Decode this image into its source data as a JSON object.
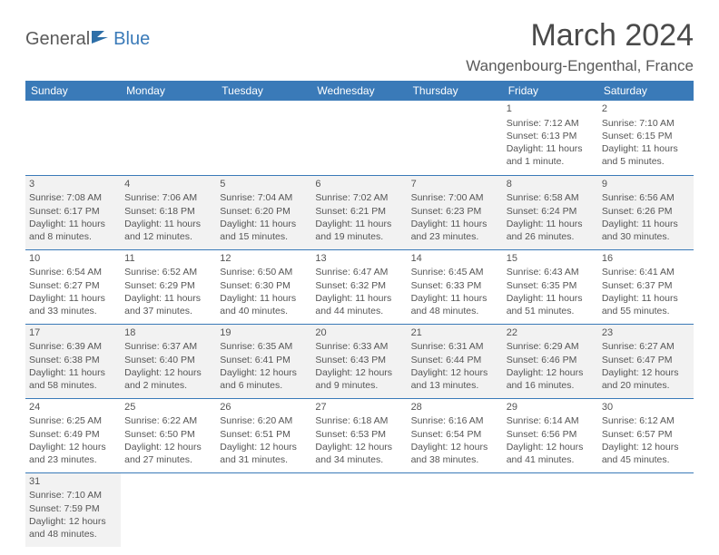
{
  "brand": {
    "part1": "General",
    "part2": "Blue"
  },
  "title": "March 2024",
  "location": "Wangenbourg-Engenthal, France",
  "colors": {
    "header_bg": "#3a7ab8",
    "text": "#4a4a4a",
    "alt_row": "#f2f2f2"
  },
  "weekdays": [
    "Sunday",
    "Monday",
    "Tuesday",
    "Wednesday",
    "Thursday",
    "Friday",
    "Saturday"
  ],
  "weeks": [
    [
      null,
      null,
      null,
      null,
      null,
      {
        "n": "1",
        "sr": "Sunrise: 7:12 AM",
        "ss": "Sunset: 6:13 PM",
        "d1": "Daylight: 11 hours",
        "d2": "and 1 minute."
      },
      {
        "n": "2",
        "sr": "Sunrise: 7:10 AM",
        "ss": "Sunset: 6:15 PM",
        "d1": "Daylight: 11 hours",
        "d2": "and 5 minutes."
      }
    ],
    [
      {
        "n": "3",
        "sr": "Sunrise: 7:08 AM",
        "ss": "Sunset: 6:17 PM",
        "d1": "Daylight: 11 hours",
        "d2": "and 8 minutes."
      },
      {
        "n": "4",
        "sr": "Sunrise: 7:06 AM",
        "ss": "Sunset: 6:18 PM",
        "d1": "Daylight: 11 hours",
        "d2": "and 12 minutes."
      },
      {
        "n": "5",
        "sr": "Sunrise: 7:04 AM",
        "ss": "Sunset: 6:20 PM",
        "d1": "Daylight: 11 hours",
        "d2": "and 15 minutes."
      },
      {
        "n": "6",
        "sr": "Sunrise: 7:02 AM",
        "ss": "Sunset: 6:21 PM",
        "d1": "Daylight: 11 hours",
        "d2": "and 19 minutes."
      },
      {
        "n": "7",
        "sr": "Sunrise: 7:00 AM",
        "ss": "Sunset: 6:23 PM",
        "d1": "Daylight: 11 hours",
        "d2": "and 23 minutes."
      },
      {
        "n": "8",
        "sr": "Sunrise: 6:58 AM",
        "ss": "Sunset: 6:24 PM",
        "d1": "Daylight: 11 hours",
        "d2": "and 26 minutes."
      },
      {
        "n": "9",
        "sr": "Sunrise: 6:56 AM",
        "ss": "Sunset: 6:26 PM",
        "d1": "Daylight: 11 hours",
        "d2": "and 30 minutes."
      }
    ],
    [
      {
        "n": "10",
        "sr": "Sunrise: 6:54 AM",
        "ss": "Sunset: 6:27 PM",
        "d1": "Daylight: 11 hours",
        "d2": "and 33 minutes."
      },
      {
        "n": "11",
        "sr": "Sunrise: 6:52 AM",
        "ss": "Sunset: 6:29 PM",
        "d1": "Daylight: 11 hours",
        "d2": "and 37 minutes."
      },
      {
        "n": "12",
        "sr": "Sunrise: 6:50 AM",
        "ss": "Sunset: 6:30 PM",
        "d1": "Daylight: 11 hours",
        "d2": "and 40 minutes."
      },
      {
        "n": "13",
        "sr": "Sunrise: 6:47 AM",
        "ss": "Sunset: 6:32 PM",
        "d1": "Daylight: 11 hours",
        "d2": "and 44 minutes."
      },
      {
        "n": "14",
        "sr": "Sunrise: 6:45 AM",
        "ss": "Sunset: 6:33 PM",
        "d1": "Daylight: 11 hours",
        "d2": "and 48 minutes."
      },
      {
        "n": "15",
        "sr": "Sunrise: 6:43 AM",
        "ss": "Sunset: 6:35 PM",
        "d1": "Daylight: 11 hours",
        "d2": "and 51 minutes."
      },
      {
        "n": "16",
        "sr": "Sunrise: 6:41 AM",
        "ss": "Sunset: 6:37 PM",
        "d1": "Daylight: 11 hours",
        "d2": "and 55 minutes."
      }
    ],
    [
      {
        "n": "17",
        "sr": "Sunrise: 6:39 AM",
        "ss": "Sunset: 6:38 PM",
        "d1": "Daylight: 11 hours",
        "d2": "and 58 minutes."
      },
      {
        "n": "18",
        "sr": "Sunrise: 6:37 AM",
        "ss": "Sunset: 6:40 PM",
        "d1": "Daylight: 12 hours",
        "d2": "and 2 minutes."
      },
      {
        "n": "19",
        "sr": "Sunrise: 6:35 AM",
        "ss": "Sunset: 6:41 PM",
        "d1": "Daylight: 12 hours",
        "d2": "and 6 minutes."
      },
      {
        "n": "20",
        "sr": "Sunrise: 6:33 AM",
        "ss": "Sunset: 6:43 PM",
        "d1": "Daylight: 12 hours",
        "d2": "and 9 minutes."
      },
      {
        "n": "21",
        "sr": "Sunrise: 6:31 AM",
        "ss": "Sunset: 6:44 PM",
        "d1": "Daylight: 12 hours",
        "d2": "and 13 minutes."
      },
      {
        "n": "22",
        "sr": "Sunrise: 6:29 AM",
        "ss": "Sunset: 6:46 PM",
        "d1": "Daylight: 12 hours",
        "d2": "and 16 minutes."
      },
      {
        "n": "23",
        "sr": "Sunrise: 6:27 AM",
        "ss": "Sunset: 6:47 PM",
        "d1": "Daylight: 12 hours",
        "d2": "and 20 minutes."
      }
    ],
    [
      {
        "n": "24",
        "sr": "Sunrise: 6:25 AM",
        "ss": "Sunset: 6:49 PM",
        "d1": "Daylight: 12 hours",
        "d2": "and 23 minutes."
      },
      {
        "n": "25",
        "sr": "Sunrise: 6:22 AM",
        "ss": "Sunset: 6:50 PM",
        "d1": "Daylight: 12 hours",
        "d2": "and 27 minutes."
      },
      {
        "n": "26",
        "sr": "Sunrise: 6:20 AM",
        "ss": "Sunset: 6:51 PM",
        "d1": "Daylight: 12 hours",
        "d2": "and 31 minutes."
      },
      {
        "n": "27",
        "sr": "Sunrise: 6:18 AM",
        "ss": "Sunset: 6:53 PM",
        "d1": "Daylight: 12 hours",
        "d2": "and 34 minutes."
      },
      {
        "n": "28",
        "sr": "Sunrise: 6:16 AM",
        "ss": "Sunset: 6:54 PM",
        "d1": "Daylight: 12 hours",
        "d2": "and 38 minutes."
      },
      {
        "n": "29",
        "sr": "Sunrise: 6:14 AM",
        "ss": "Sunset: 6:56 PM",
        "d1": "Daylight: 12 hours",
        "d2": "and 41 minutes."
      },
      {
        "n": "30",
        "sr": "Sunrise: 6:12 AM",
        "ss": "Sunset: 6:57 PM",
        "d1": "Daylight: 12 hours",
        "d2": "and 45 minutes."
      }
    ],
    [
      {
        "n": "31",
        "sr": "Sunrise: 7:10 AM",
        "ss": "Sunset: 7:59 PM",
        "d1": "Daylight: 12 hours",
        "d2": "and 48 minutes."
      },
      null,
      null,
      null,
      null,
      null,
      null
    ]
  ]
}
